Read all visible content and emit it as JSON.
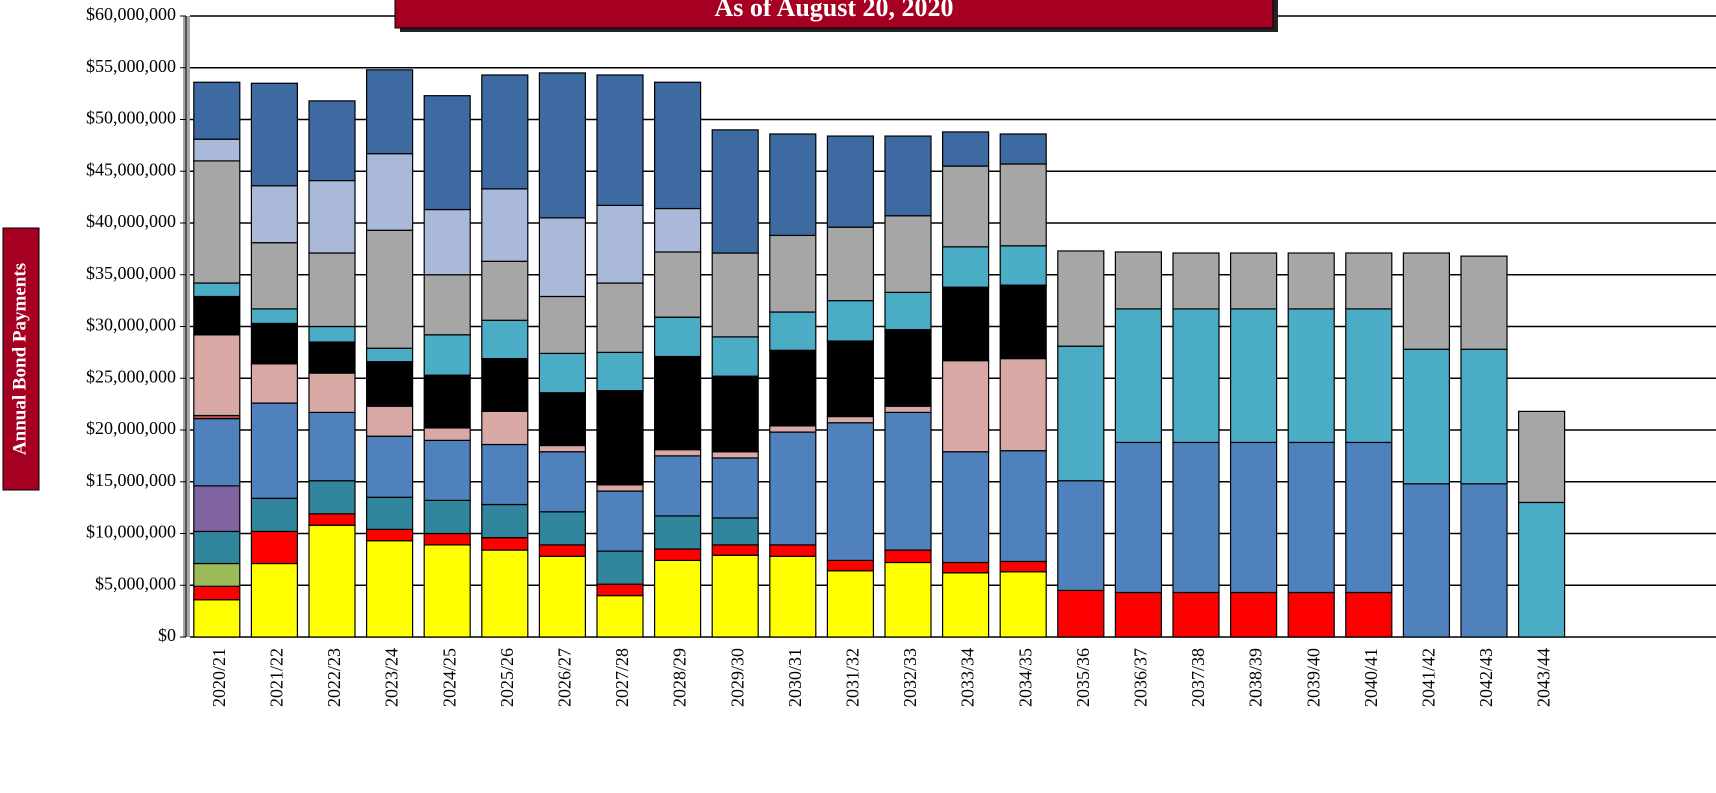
{
  "chart_data": {
    "type": "bar",
    "stacked": true,
    "title": "As of August 20, 2020",
    "y_label": "Annual Bond Payments",
    "categories": [
      "2020/21",
      "2021/22",
      "2022/23",
      "2023/24",
      "2024/25",
      "2025/26",
      "2026/27",
      "2027/28",
      "2028/29",
      "2029/30",
      "2030/31",
      "2031/32",
      "2032/33",
      "2033/34",
      "2034/35",
      "2035/36",
      "2036/37",
      "2037/38",
      "2038/39",
      "2039/40",
      "2040/41",
      "2041/42",
      "2042/43",
      "2043/44"
    ],
    "ylim": [
      0,
      60000000
    ],
    "yticks": [
      {
        "value": 0,
        "label": "$0"
      },
      {
        "value": 5000000,
        "label": "$5,000,000"
      },
      {
        "value": 10000000,
        "label": "$10,000,000"
      },
      {
        "value": 15000000,
        "label": "$15,000,000"
      },
      {
        "value": 20000000,
        "label": "$20,000,000"
      },
      {
        "value": 25000000,
        "label": "$25,000,000"
      },
      {
        "value": 30000000,
        "label": "$30,000,000"
      },
      {
        "value": 35000000,
        "label": "$35,000,000"
      },
      {
        "value": 40000000,
        "label": "$40,000,000"
      },
      {
        "value": 45000000,
        "label": "$45,000,000"
      },
      {
        "value": 50000000,
        "label": "$50,000,000"
      },
      {
        "value": 55000000,
        "label": "$55,000,000"
      },
      {
        "value": 60000000,
        "label": "$60,000,000"
      }
    ],
    "grid": true,
    "series": [
      {
        "color": "#ffff00",
        "values": [
          3600000,
          7100000,
          10800000,
          9300000,
          8900000,
          8400000,
          7800000,
          4000000,
          7400000,
          7900000,
          7800000,
          6400000,
          7200000,
          6200000,
          6300000,
          null,
          null,
          null,
          null,
          null,
          null,
          null,
          null,
          null
        ]
      },
      {
        "color": "#ff0000",
        "values": [
          1300000,
          3100000,
          1100000,
          1100000,
          1100000,
          1200000,
          1100000,
          1100000,
          1100000,
          1000000,
          1100000,
          1000000,
          1200000,
          1000000,
          1000000,
          4500000,
          4300000,
          4300000,
          4300000,
          4300000,
          4300000,
          null,
          null,
          null
        ]
      },
      {
        "color": "#9bbb59",
        "values": [
          2200000,
          null,
          null,
          null,
          null,
          null,
          null,
          null,
          null,
          null,
          null,
          null,
          null,
          null,
          null,
          null,
          null,
          null,
          null,
          null,
          null,
          null,
          null,
          null
        ]
      },
      {
        "color": "#31859c",
        "values": [
          3100000,
          3200000,
          3200000,
          3100000,
          3200000,
          3200000,
          3200000,
          3200000,
          3200000,
          2600000,
          null,
          null,
          null,
          null,
          null,
          null,
          null,
          null,
          null,
          null,
          null,
          null,
          null,
          null
        ]
      },
      {
        "color": "#8064a2",
        "values": [
          4400000,
          null,
          null,
          null,
          null,
          null,
          null,
          null,
          null,
          null,
          null,
          null,
          null,
          null,
          null,
          null,
          null,
          null,
          null,
          null,
          null,
          null,
          null,
          null
        ]
      },
      {
        "color": "#4f81bd",
        "values": [
          6500000,
          9200000,
          6600000,
          5900000,
          5800000,
          5800000,
          5800000,
          5800000,
          5800000,
          5800000,
          10900000,
          13300000,
          13300000,
          10700000,
          10700000,
          10600000,
          14500000,
          14500000,
          14500000,
          14500000,
          14500000,
          14800000,
          14800000,
          null
        ]
      },
      {
        "color": "#c0504d",
        "values": [
          300000,
          null,
          null,
          null,
          null,
          null,
          null,
          null,
          null,
          null,
          null,
          null,
          null,
          null,
          null,
          null,
          null,
          null,
          null,
          null,
          null,
          null,
          null,
          null
        ]
      },
      {
        "color": "#d9a9a5",
        "values": [
          7800000,
          3800000,
          3800000,
          2900000,
          1200000,
          3200000,
          600000,
          600000,
          600000,
          600000,
          600000,
          600000,
          600000,
          8800000,
          8900000,
          null,
          null,
          null,
          null,
          null,
          null,
          null,
          null,
          null
        ]
      },
      {
        "color": "#000000",
        "values": [
          3700000,
          3900000,
          3000000,
          4300000,
          5100000,
          5100000,
          5100000,
          9100000,
          9000000,
          7300000,
          7300000,
          7300000,
          7400000,
          7100000,
          7100000,
          null,
          null,
          null,
          null,
          null,
          null,
          null,
          null,
          null
        ]
      },
      {
        "color": "#4bacc6",
        "values": [
          1300000,
          1400000,
          1500000,
          1300000,
          3900000,
          3700000,
          3800000,
          3700000,
          3800000,
          3800000,
          3700000,
          3900000,
          3600000,
          3900000,
          3800000,
          13000000,
          12900000,
          12900000,
          12900000,
          12900000,
          12900000,
          13000000,
          13000000,
          13000000
        ]
      },
      {
        "color": "#a6a6a6",
        "values": [
          11800000,
          6400000,
          7100000,
          11400000,
          5800000,
          5700000,
          5500000,
          6700000,
          6300000,
          8100000,
          7400000,
          7100000,
          7400000,
          7800000,
          7900000,
          9200000,
          5500000,
          5400000,
          5400000,
          5400000,
          5400000,
          9300000,
          9000000,
          8800000
        ]
      },
      {
        "color": "#aab9da",
        "values": [
          2100000,
          5500000,
          7000000,
          7400000,
          6300000,
          7000000,
          7600000,
          7500000,
          4200000,
          null,
          null,
          null,
          null,
          null,
          null,
          null,
          null,
          null,
          null,
          null,
          null,
          null,
          null,
          null
        ]
      },
      {
        "color": "#3d6aa1",
        "values": [
          5500000,
          9900000,
          7700000,
          8100000,
          11000000,
          11000000,
          14000000,
          12600000,
          12200000,
          11900000,
          9800000,
          8800000,
          7700000,
          3300000,
          2900000,
          null,
          null,
          null,
          null,
          null,
          null,
          null,
          null,
          null
        ]
      }
    ]
  }
}
